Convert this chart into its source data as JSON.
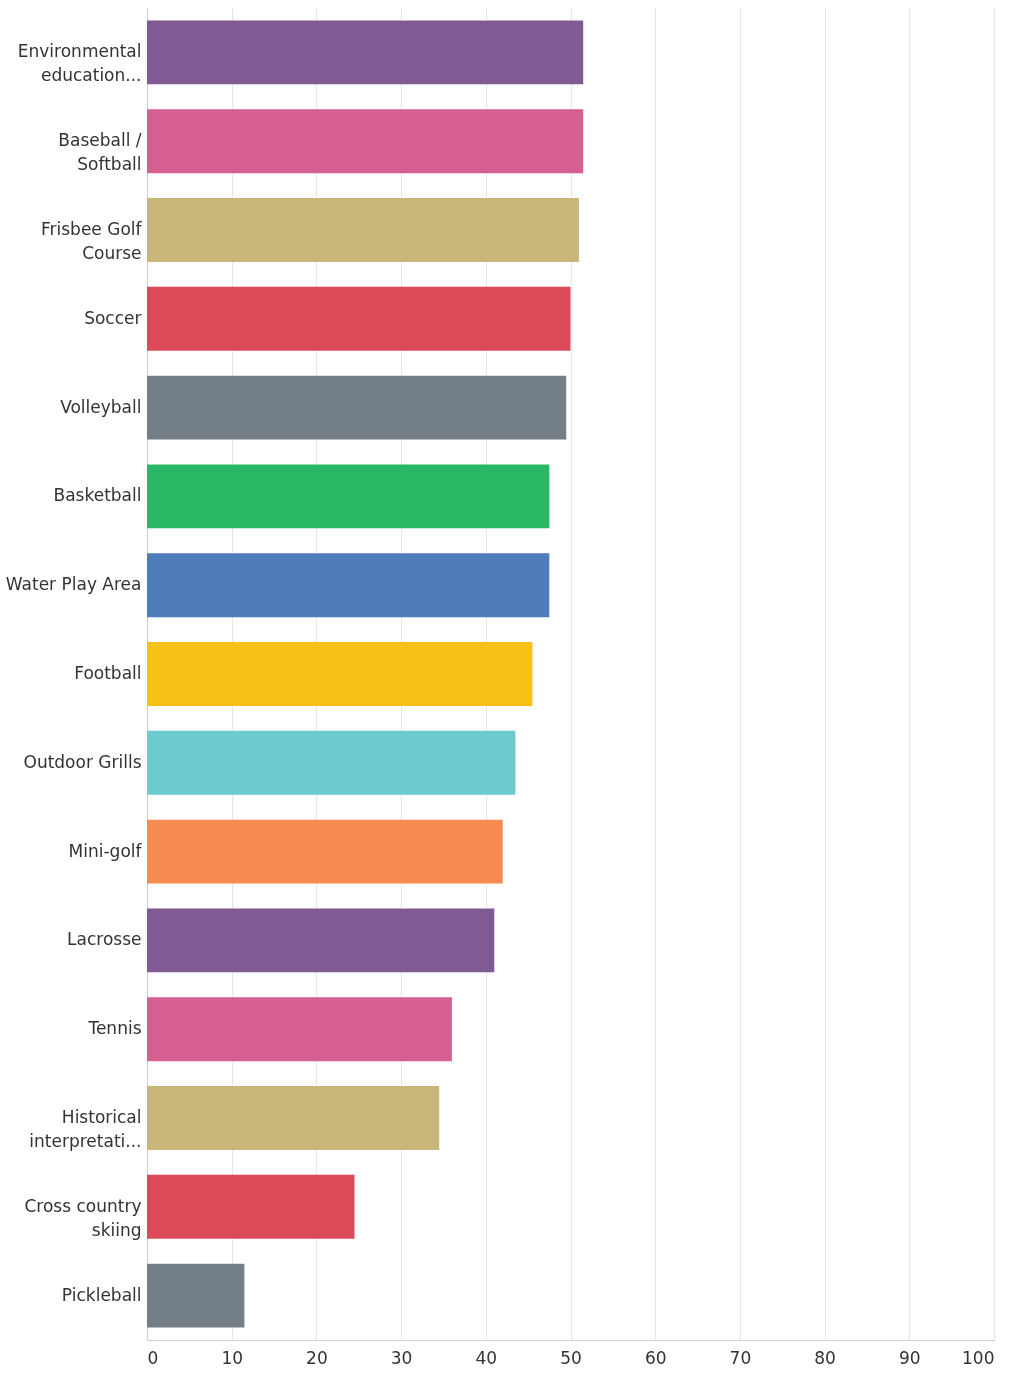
{
  "chart_data": {
    "type": "bar",
    "orientation": "horizontal",
    "categories": [
      "Environmental education...",
      "Baseball / Softball",
      "Frisbee Golf Course",
      "Soccer",
      "Volleyball",
      "Basketball",
      "Water Play Area",
      "Football",
      "Outdoor Grills",
      "Mini-golf",
      "Lacrosse",
      "Tennis",
      "Historical interpretati...",
      "Cross country skiing",
      "Pickleball"
    ],
    "values": [
      51.5,
      51.5,
      51,
      50,
      49.5,
      47.5,
      47.5,
      45.5,
      43.5,
      42,
      41,
      36,
      34.5,
      24.5,
      11.5
    ],
    "colors": [
      "#7f5a93",
      "#d75e91",
      "#c9b779",
      "#dc4a5a",
      "#737e86",
      "#2ab866",
      "#4f7dbc",
      "#f7c014",
      "#6ccbce",
      "#f78c52",
      "#7f5a93",
      "#d75e91",
      "#c9b779",
      "#dc4a5a",
      "#737e86"
    ],
    "xlim": [
      0,
      100
    ],
    "xticks": [
      0,
      10,
      20,
      30,
      40,
      50,
      60,
      70,
      80,
      90,
      100
    ],
    "grid": "x"
  }
}
